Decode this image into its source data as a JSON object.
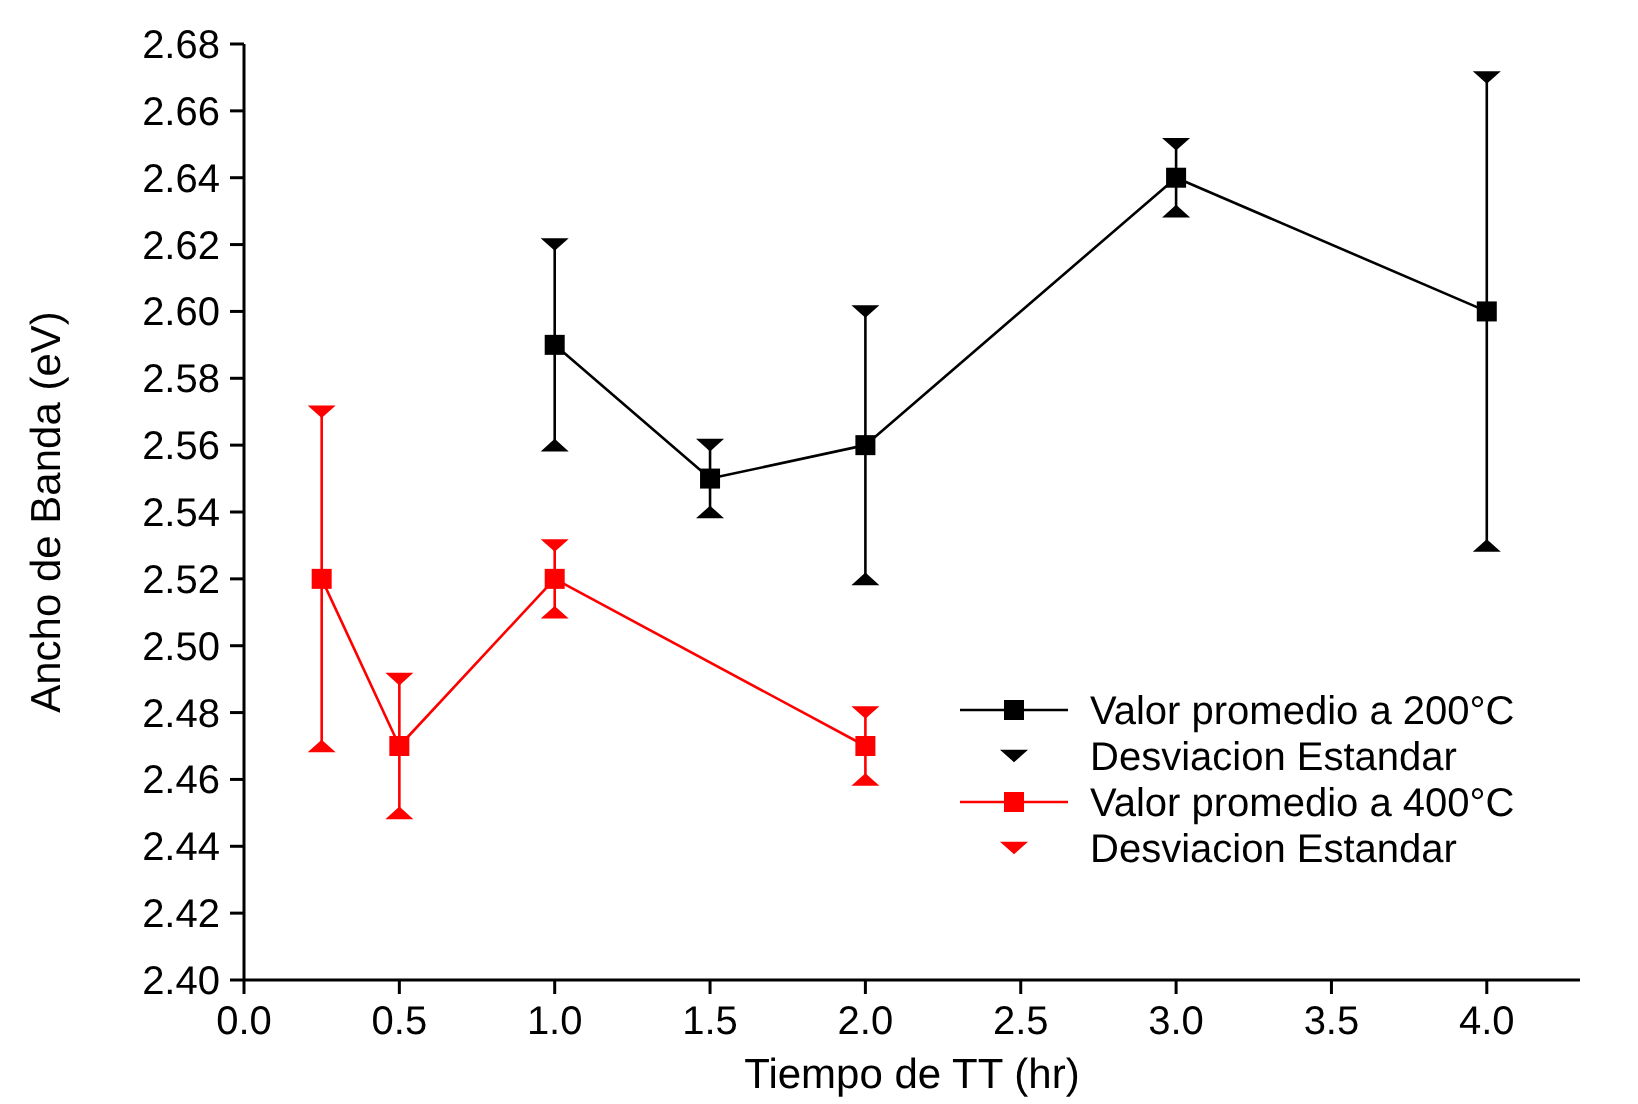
{
  "chart_data": {
    "type": "line",
    "xlabel": "Tiempo de TT (hr)",
    "ylabel": "Ancho de Banda (eV)",
    "xlim": [
      0,
      4.3
    ],
    "xticks": [
      {
        "value": 0,
        "label": "0.0"
      },
      {
        "value": 0.5,
        "label": "0.5"
      },
      {
        "value": 1,
        "label": "1.0"
      },
      {
        "value": 1.5,
        "label": "1.5"
      },
      {
        "value": 2,
        "label": "2.0"
      },
      {
        "value": 2.5,
        "label": "2.5"
      },
      {
        "value": 3,
        "label": "3.0"
      },
      {
        "value": 3.5,
        "label": "3.5"
      },
      {
        "value": 4,
        "label": "4.0"
      }
    ],
    "ylim": [
      2.4,
      2.68
    ],
    "yticks": [
      {
        "value": 2.4,
        "label": "2.40"
      },
      {
        "value": 2.42,
        "label": "2.42"
      },
      {
        "value": 2.44,
        "label": "2.44"
      },
      {
        "value": 2.46,
        "label": "2.46"
      },
      {
        "value": 2.48,
        "label": "2.48"
      },
      {
        "value": 2.5,
        "label": "2.50"
      },
      {
        "value": 2.52,
        "label": "2.52"
      },
      {
        "value": 2.54,
        "label": "2.54"
      },
      {
        "value": 2.56,
        "label": "2.56"
      },
      {
        "value": 2.58,
        "label": "2.58"
      },
      {
        "value": 2.6,
        "label": "2.60"
      },
      {
        "value": 2.62,
        "label": "2.62"
      },
      {
        "value": 2.64,
        "label": "2.64"
      },
      {
        "value": 2.66,
        "label": "2.66"
      },
      {
        "value": 2.68,
        "label": "2.68"
      }
    ],
    "grid": false,
    "legend": "bottom right",
    "series": [
      {
        "name": "Valor promedio a 200°C",
        "marker": "square",
        "color": "#000000",
        "x": [
          1,
          1.5,
          2,
          3,
          4
        ],
        "values": [
          2.59,
          2.55,
          2.56,
          2.64,
          2.6
        ],
        "errors": [
          0.03,
          0.01,
          0.04,
          0.01,
          0.07
        ]
      },
      {
        "name": "Desviacion Estandar",
        "type": "scatter",
        "marker": "triangle",
        "color": "#000000",
        "x": [
          1,
          1,
          1.5,
          1.5,
          2,
          2,
          3,
          3,
          4,
          4
        ],
        "values": [
          2.62,
          2.56,
          2.56,
          2.54,
          2.6,
          2.52,
          2.65,
          2.63,
          2.67,
          2.53
        ]
      },
      {
        "name": "Valor promedio a 400°C",
        "marker": "square",
        "color": "#ff0000",
        "x": [
          0.25,
          0.5,
          1,
          2
        ],
        "values": [
          2.52,
          2.47,
          2.52,
          2.47
        ],
        "errors": [
          0.05,
          0.02,
          0.01,
          0.01
        ]
      },
      {
        "name": "Desviacion Estandar",
        "type": "scatter",
        "marker": "triangle",
        "color": "#ff0000",
        "x": [
          0.25,
          0.25,
          0.5,
          0.5,
          1,
          1,
          2,
          2
        ],
        "values": [
          2.57,
          2.47,
          2.49,
          2.45,
          2.53,
          2.51,
          2.48,
          2.46
        ]
      }
    ]
  }
}
